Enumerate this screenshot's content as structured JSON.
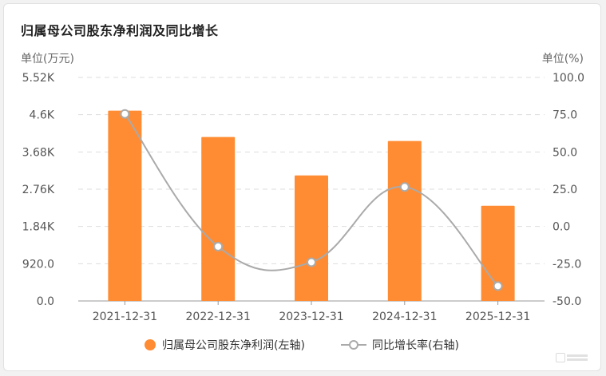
{
  "title": "归属母公司股东净利润及同比增长",
  "units": {
    "left": "单位(万元)",
    "right": "单位(%)"
  },
  "colors": {
    "bar": "#ff8c33",
    "line": "#aaaaaa",
    "grid": "#dddddd",
    "text": "#555555"
  },
  "chart_data": {
    "type": "bar",
    "categories": [
      "2021-12-31",
      "2022-12-31",
      "2023-12-31",
      "2024-12-31",
      "2025-12-31"
    ],
    "series": [
      {
        "name": "归属母公司股东净利润(左轴)",
        "type": "bar",
        "axis": "left",
        "values": [
          4700,
          4050,
          3100,
          3950,
          2350
        ]
      },
      {
        "name": "同比增长率(右轴)",
        "type": "line",
        "axis": "right",
        "values": [
          75.5,
          -13.5,
          -24.0,
          26.5,
          -40.0
        ]
      }
    ],
    "left_axis": {
      "ticks": [
        "0.0",
        "920.0",
        "1.84K",
        "2.76K",
        "3.68K",
        "4.6K",
        "5.52K"
      ],
      "ylim": [
        0,
        5520
      ]
    },
    "right_axis": {
      "ticks": [
        "-50.0",
        "-25.0",
        "0.0",
        "25.0",
        "50.0",
        "75.0",
        "100.0"
      ],
      "ylim": [
        -50,
        100
      ]
    },
    "grid": true,
    "legend_position": "bottom"
  }
}
